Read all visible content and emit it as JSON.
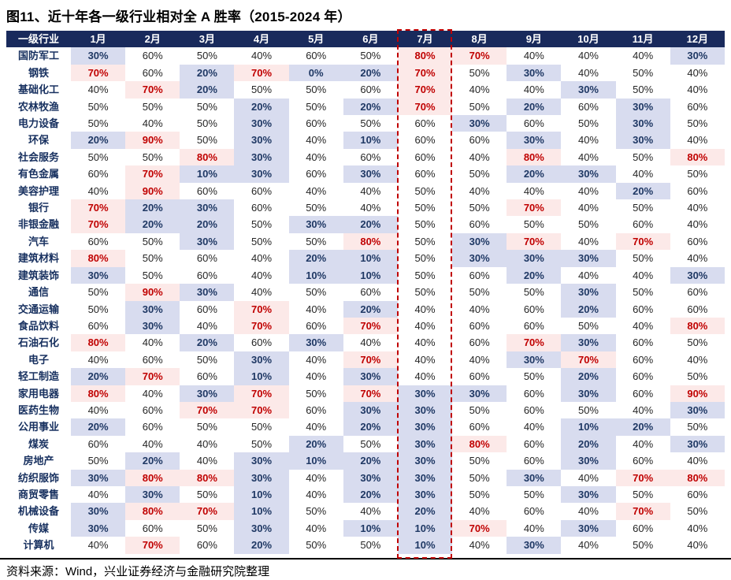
{
  "title": "图11、近十年各一级行业相对全 A 胜率（2015-2024 年）",
  "footer": "资料来源：Wind，兴业证券经济与金融研究院整理",
  "chart_data": {
    "type": "heatmap",
    "unit": "%",
    "corner_header": "一级行业",
    "columns": [
      "1月",
      "2月",
      "3月",
      "4月",
      "5月",
      "6月",
      "7月",
      "8月",
      "9月",
      "10月",
      "11月",
      "12月"
    ],
    "highlight_column": "7月",
    "legend_rules": {
      "high_min": 70,
      "low_max": 30
    },
    "colors": {
      "header_bg": "#192A5C",
      "header_text": "#FFFFFF",
      "high_text": "#C00000",
      "high_bg": "#FCE9E8",
      "low_text": "#1F3864",
      "low_bg": "#D8DCEF",
      "normal_text": "#262626",
      "industry_text": "#17305F",
      "highlight_border": "#C00000"
    },
    "rows": [
      {
        "industry": "国防军工",
        "values": [
          30,
          60,
          50,
          40,
          60,
          50,
          80,
          70,
          40,
          40,
          40,
          30
        ]
      },
      {
        "industry": "钢铁",
        "values": [
          70,
          60,
          20,
          70,
          0,
          20,
          70,
          50,
          30,
          40,
          50,
          40
        ]
      },
      {
        "industry": "基础化工",
        "values": [
          40,
          70,
          20,
          50,
          50,
          60,
          70,
          40,
          40,
          30,
          50,
          40
        ]
      },
      {
        "industry": "农林牧渔",
        "values": [
          50,
          50,
          50,
          20,
          50,
          20,
          70,
          50,
          20,
          60,
          30,
          60
        ]
      },
      {
        "industry": "电力设备",
        "values": [
          50,
          40,
          50,
          30,
          60,
          50,
          60,
          30,
          60,
          50,
          30,
          50
        ]
      },
      {
        "industry": "环保",
        "values": [
          20,
          90,
          50,
          30,
          40,
          10,
          60,
          60,
          30,
          40,
          30,
          40
        ]
      },
      {
        "industry": "社会服务",
        "values": [
          50,
          50,
          80,
          30,
          40,
          60,
          60,
          40,
          80,
          40,
          50,
          80
        ]
      },
      {
        "industry": "有色金属",
        "values": [
          60,
          70,
          10,
          30,
          60,
          30,
          60,
          50,
          20,
          30,
          40,
          50
        ]
      },
      {
        "industry": "美容护理",
        "values": [
          40,
          90,
          60,
          60,
          40,
          40,
          50,
          40,
          40,
          40,
          20,
          60
        ]
      },
      {
        "industry": "银行",
        "values": [
          70,
          20,
          30,
          60,
          50,
          40,
          50,
          50,
          70,
          40,
          50,
          40
        ]
      },
      {
        "industry": "非银金融",
        "values": [
          70,
          20,
          20,
          50,
          30,
          20,
          50,
          60,
          50,
          50,
          60,
          40
        ]
      },
      {
        "industry": "汽车",
        "values": [
          60,
          50,
          30,
          50,
          50,
          80,
          50,
          30,
          70,
          40,
          70,
          60
        ]
      },
      {
        "industry": "建筑材料",
        "values": [
          80,
          50,
          60,
          40,
          20,
          10,
          50,
          30,
          30,
          30,
          50,
          40
        ]
      },
      {
        "industry": "建筑装饰",
        "values": [
          30,
          50,
          60,
          40,
          10,
          10,
          50,
          60,
          20,
          40,
          40,
          30
        ]
      },
      {
        "industry": "通信",
        "values": [
          50,
          90,
          30,
          40,
          50,
          60,
          50,
          50,
          50,
          30,
          50,
          60
        ]
      },
      {
        "industry": "交通运输",
        "values": [
          50,
          30,
          60,
          70,
          40,
          20,
          40,
          40,
          60,
          20,
          60,
          60
        ]
      },
      {
        "industry": "食品饮料",
        "values": [
          60,
          30,
          40,
          70,
          60,
          70,
          40,
          60,
          60,
          50,
          40,
          80
        ]
      },
      {
        "industry": "石油石化",
        "values": [
          80,
          40,
          20,
          60,
          30,
          40,
          40,
          60,
          70,
          30,
          60,
          50
        ]
      },
      {
        "industry": "电子",
        "values": [
          40,
          60,
          50,
          30,
          40,
          70,
          40,
          40,
          30,
          70,
          60,
          40
        ]
      },
      {
        "industry": "轻工制造",
        "values": [
          20,
          70,
          60,
          10,
          40,
          30,
          40,
          60,
          50,
          20,
          60,
          50
        ]
      },
      {
        "industry": "家用电器",
        "values": [
          80,
          40,
          30,
          70,
          50,
          70,
          30,
          30,
          60,
          30,
          60,
          90
        ]
      },
      {
        "industry": "医药生物",
        "values": [
          40,
          60,
          70,
          70,
          60,
          30,
          30,
          50,
          60,
          50,
          40,
          30
        ]
      },
      {
        "industry": "公用事业",
        "values": [
          20,
          60,
          50,
          50,
          40,
          20,
          30,
          60,
          40,
          10,
          20,
          50
        ]
      },
      {
        "industry": "煤炭",
        "values": [
          60,
          40,
          40,
          50,
          20,
          50,
          30,
          80,
          60,
          20,
          40,
          30
        ]
      },
      {
        "industry": "房地产",
        "values": [
          50,
          20,
          40,
          30,
          10,
          20,
          30,
          50,
          60,
          30,
          60,
          40
        ]
      },
      {
        "industry": "纺织服饰",
        "values": [
          30,
          80,
          80,
          30,
          40,
          30,
          30,
          50,
          30,
          40,
          70,
          80
        ]
      },
      {
        "industry": "商贸零售",
        "values": [
          40,
          30,
          50,
          10,
          40,
          20,
          30,
          50,
          50,
          30,
          50,
          60
        ]
      },
      {
        "industry": "机械设备",
        "values": [
          30,
          80,
          70,
          10,
          50,
          40,
          20,
          40,
          60,
          40,
          70,
          50
        ]
      },
      {
        "industry": "传媒",
        "values": [
          30,
          60,
          50,
          30,
          40,
          10,
          10,
          70,
          40,
          30,
          60,
          40
        ]
      },
      {
        "industry": "计算机",
        "values": [
          40,
          70,
          60,
          20,
          50,
          50,
          10,
          40,
          30,
          40,
          50,
          40
        ]
      }
    ]
  }
}
